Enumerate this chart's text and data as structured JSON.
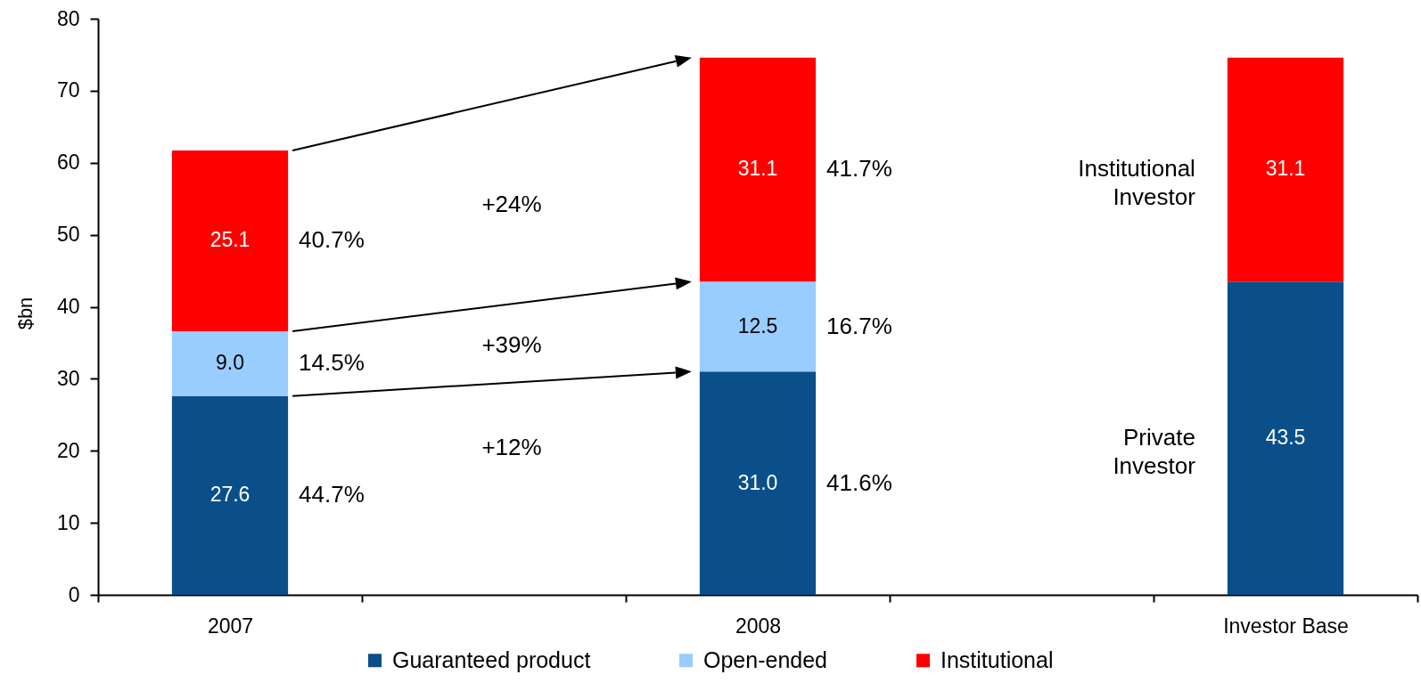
{
  "chart_data": {
    "type": "bar",
    "stacked": true,
    "ylabel": "$bn",
    "categories": [
      "2007",
      null,
      "2008",
      null,
      "Investor Base"
    ],
    "series": [
      {
        "name": "Guaranteed product",
        "color": "#0b4f8a",
        "values": [
          27.6,
          null,
          31.0,
          null,
          null
        ],
        "value_labels": [
          "27.6",
          null,
          "31.0",
          null,
          null
        ]
      },
      {
        "name": "Open-ended",
        "color": "#99ccff",
        "values": [
          9.0,
          null,
          12.5,
          null,
          null
        ],
        "value_labels": [
          "9.0",
          null,
          "12.5",
          null,
          null
        ]
      },
      {
        "name": "Institutional",
        "color": "#ff0000",
        "values": [
          25.1,
          null,
          31.1,
          null,
          null
        ],
        "value_labels": [
          "25.1",
          null,
          "31.1",
          null,
          null
        ]
      },
      {
        "color": "#0b4f8a",
        "values": [
          null,
          null,
          null,
          null,
          43.5
        ],
        "value_labels": [
          null,
          null,
          null,
          null,
          "43.5"
        ]
      },
      {
        "color": "#ff0000",
        "values": [
          null,
          null,
          null,
          null,
          31.1
        ],
        "value_labels": [
          null,
          null,
          null,
          null,
          "31.1"
        ]
      }
    ],
    "ylim": [
      0,
      80
    ],
    "yticks": [
      0,
      10,
      20,
      30,
      40,
      50,
      60,
      70,
      80
    ],
    "legend": "bottom",
    "annotations": [
      "40.7%",
      "14.5%",
      "44.7%",
      "41.7%",
      "16.7%",
      "41.6%",
      "+24%",
      "+39%",
      "+12%",
      "Institutional Investor",
      "Private Investor"
    ]
  }
}
